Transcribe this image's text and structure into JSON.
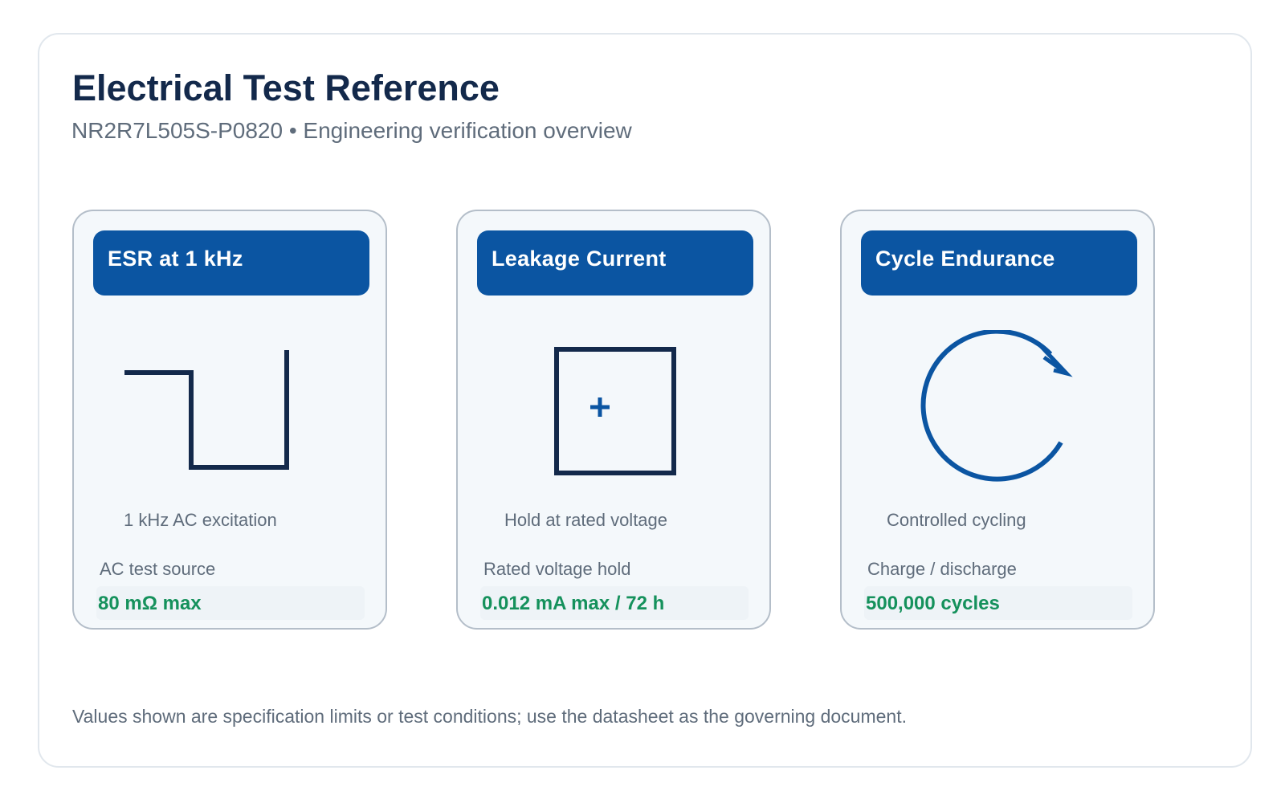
{
  "header": {
    "title": "Electrical Test Reference",
    "subtitle": "NR2R7L505S-P0820 • Engineering verification overview"
  },
  "cards": [
    {
      "title": "ESR at 1 kHz",
      "icon": "square-wave-icon",
      "caption": "1 kHz AC excitation",
      "label": "AC test source",
      "value": "80 mΩ max"
    },
    {
      "title": "Leakage Current",
      "icon": "dc-source-plus-icon",
      "caption": "Hold at rated voltage",
      "label": "Rated voltage hold",
      "value": "0.012 mA max / 72 h"
    },
    {
      "title": "Cycle Endurance",
      "icon": "cycle-arrow-icon",
      "caption": "Controlled cycling",
      "label": "Charge / discharge",
      "value": "500,000 cycles"
    }
  ],
  "footnote": "Values shown are specification limits or test conditions; use the datasheet as the governing document.",
  "colors": {
    "header_blue": "#0b55a2",
    "title_navy": "#13294b",
    "value_green": "#15915c",
    "muted_text": "#5f6c7b",
    "card_border": "#b4bec9",
    "card_background": "#f4f8fb"
  }
}
